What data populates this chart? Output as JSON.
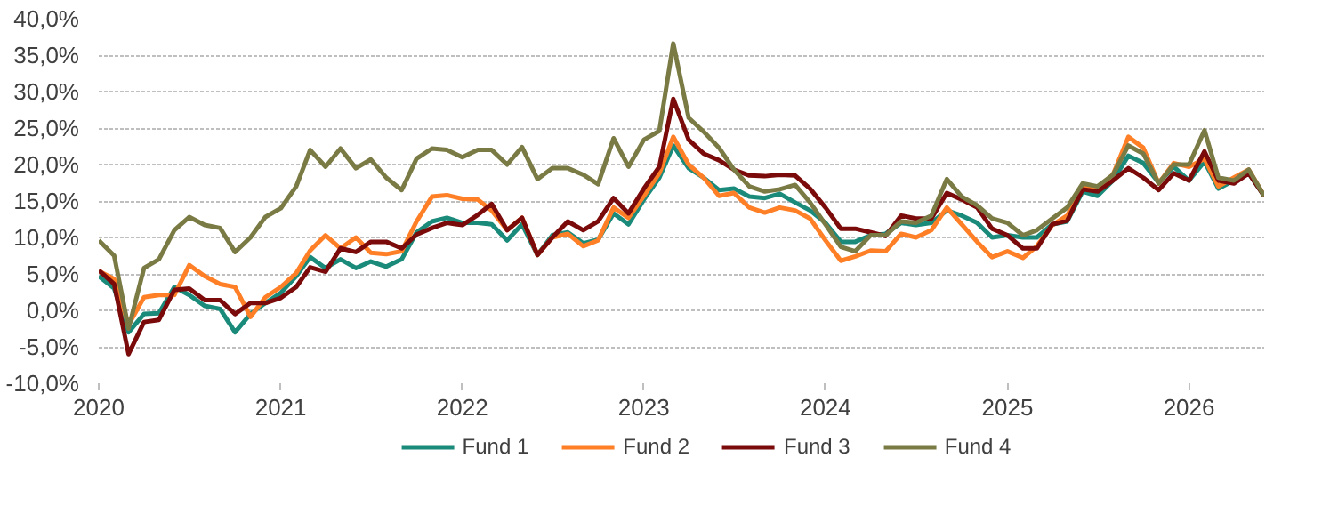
{
  "chart_data": {
    "type": "line",
    "x": [
      "2020-01",
      "2020-02",
      "2020-03",
      "2020-04",
      "2020-05",
      "2020-06",
      "2020-07",
      "2020-08",
      "2020-09",
      "2020-10",
      "2020-11",
      "2020-12",
      "2021-01",
      "2021-02",
      "2021-03",
      "2021-04",
      "2021-05",
      "2021-06",
      "2021-07",
      "2021-08",
      "2021-09",
      "2021-10",
      "2021-11",
      "2021-12",
      "2022-01",
      "2022-02",
      "2022-03",
      "2022-04",
      "2022-05",
      "2022-06",
      "2022-07",
      "2022-08",
      "2022-09",
      "2022-10",
      "2022-11",
      "2022-12",
      "2023-01",
      "2023-02",
      "2023-03",
      "2023-04",
      "2023-05",
      "2023-06",
      "2023-07",
      "2023-08",
      "2023-09",
      "2023-10",
      "2023-11",
      "2023-12",
      "2024-01",
      "2024-02",
      "2024-03",
      "2024-04",
      "2024-05",
      "2024-06",
      "2024-07",
      "2024-08",
      "2024-09",
      "2024-10",
      "2024-11",
      "2024-12",
      "2025-01",
      "2025-02",
      "2025-03",
      "2025-04",
      "2025-05",
      "2025-06",
      "2025-07",
      "2025-08",
      "2025-09",
      "2025-10",
      "2025-11",
      "2025-12",
      "2026-01",
      "2026-02",
      "2026-03",
      "2026-04",
      "2026-05",
      "2026-06"
    ],
    "series": [
      {
        "name": "Fund 1",
        "color": "#1a8a7a",
        "values": [
          4.7,
          3,
          -3,
          -0.5,
          -0.4,
          3.2,
          2.1,
          0.6,
          0.2,
          -3,
          -0.5,
          1,
          2.4,
          4.7,
          7.3,
          5.8,
          7,
          5.8,
          6.7,
          6,
          7,
          10.7,
          12.2,
          12.7,
          12,
          12,
          11.8,
          9.6,
          11.8,
          7.6,
          10.3,
          10.7,
          9.2,
          9.7,
          13.3,
          11.8,
          15.2,
          18.2,
          22.6,
          19.5,
          18.2,
          16.5,
          16.7,
          15.6,
          15.4,
          16,
          14.8,
          13.7,
          12,
          9.4,
          9.4,
          10.3,
          10.5,
          12,
          11.7,
          12,
          13.7,
          13,
          12,
          10,
          10.3,
          10,
          10,
          11.8,
          12.2,
          16.3,
          15.7,
          17.8,
          21.2,
          20.2,
          17.5,
          19.7,
          17.8,
          20.4,
          16.7,
          17.8,
          18.8,
          15.7
        ]
      },
      {
        "name": "Fund 2",
        "color": "#ff7f27",
        "values": [
          5.4,
          4.3,
          -2,
          1.8,
          2.1,
          2.1,
          6.2,
          4.7,
          3.6,
          3.2,
          -0.9,
          1.8,
          3.2,
          5.1,
          8.2,
          10.3,
          8.5,
          10,
          7.9,
          7.7,
          8.1,
          12.2,
          15.6,
          15.8,
          15.3,
          15.2,
          13.7,
          11,
          12.7,
          7.6,
          10,
          10.5,
          8.8,
          9.6,
          14.1,
          12.7,
          15.7,
          18.8,
          23.8,
          20,
          18.2,
          15.7,
          16.1,
          14.1,
          13.4,
          14.1,
          13.7,
          12.6,
          9.6,
          6.8,
          7.4,
          8.2,
          8.1,
          10.5,
          10,
          11,
          14.1,
          11.8,
          9.4,
          7.3,
          8.1,
          7.2,
          8.8,
          11.7,
          13,
          17,
          16.7,
          18.6,
          23.8,
          22.3,
          17.4,
          20.2,
          19.7,
          20.8,
          17,
          18.2,
          19.3,
          15.7
        ]
      },
      {
        "name": "Fund 3",
        "color": "#7b0a0a",
        "values": [
          5.5,
          3.6,
          -6,
          -1.6,
          -1.3,
          2.8,
          3,
          1.4,
          1.4,
          -0.5,
          1,
          1,
          1.7,
          3.2,
          5.9,
          5.3,
          8.5,
          8,
          9.4,
          9.4,
          8.5,
          10.4,
          11.3,
          12,
          11.7,
          13.1,
          14.6,
          11,
          12.7,
          7.6,
          10,
          12.2,
          11,
          12.2,
          15.4,
          13.3,
          16.7,
          19.7,
          29,
          23.4,
          21.5,
          20.6,
          19.3,
          18.5,
          18.4,
          18.6,
          18.5,
          16.7,
          14.1,
          11.2,
          11.2,
          10.7,
          10.2,
          13,
          12.6,
          12.6,
          16.1,
          15.2,
          14.1,
          11.2,
          10.3,
          8.5,
          8.5,
          11.8,
          12.3,
          16.6,
          16.3,
          17.8,
          19.5,
          18.2,
          16.5,
          18.8,
          17.8,
          21.8,
          17.8,
          17.4,
          18.8,
          15.7
        ]
      },
      {
        "name": "Fund 4",
        "color": "#7a7a45",
        "values": [
          9.6,
          7.5,
          -2.5,
          5.8,
          7,
          11,
          12.8,
          11.7,
          11.3,
          8,
          10,
          12.8,
          14,
          17,
          22,
          19.7,
          22.2,
          19.5,
          20.7,
          18.2,
          16.5,
          20.8,
          22.2,
          22,
          21,
          22,
          22,
          20,
          22.4,
          18,
          19.5,
          19.5,
          18.6,
          17.3,
          23.6,
          19.7,
          23.4,
          24.6,
          36.6,
          26.4,
          24.5,
          22.3,
          19.3,
          17,
          16.3,
          16.6,
          17.2,
          14.8,
          11.8,
          8.7,
          8.1,
          10.3,
          10.3,
          12.2,
          12,
          13,
          18,
          15.6,
          14.4,
          12.6,
          12,
          10.3,
          11,
          12.6,
          14.1,
          17.4,
          17,
          18.6,
          22.6,
          21.5,
          17.4,
          20,
          20,
          24.7,
          18.2,
          17.8,
          19.3,
          15.7
        ]
      }
    ],
    "xlim": [
      "2020-01",
      "2026-06"
    ],
    "xticks": [
      "2020",
      "2021",
      "2022",
      "2023",
      "2024",
      "2025",
      "2026"
    ],
    "ylim": [
      -10,
      40
    ],
    "yticks": [
      {
        "value": -10,
        "label": "-10,0%"
      },
      {
        "value": -5,
        "label": "-5,0%"
      },
      {
        "value": 0,
        "label": "0,0%"
      },
      {
        "value": 5,
        "label": "5,0%"
      },
      {
        "value": 10,
        "label": "10,0%"
      },
      {
        "value": 15,
        "label": "15,0%"
      },
      {
        "value": 20,
        "label": "20,0%"
      },
      {
        "value": 25,
        "label": "25,0%"
      },
      {
        "value": 30,
        "label": "30,0%"
      },
      {
        "value": 35,
        "label": "35,0%"
      },
      {
        "value": 40,
        "label": "40,0%"
      }
    ],
    "grid": "y",
    "legend": "bottom",
    "line_style": "solid"
  }
}
